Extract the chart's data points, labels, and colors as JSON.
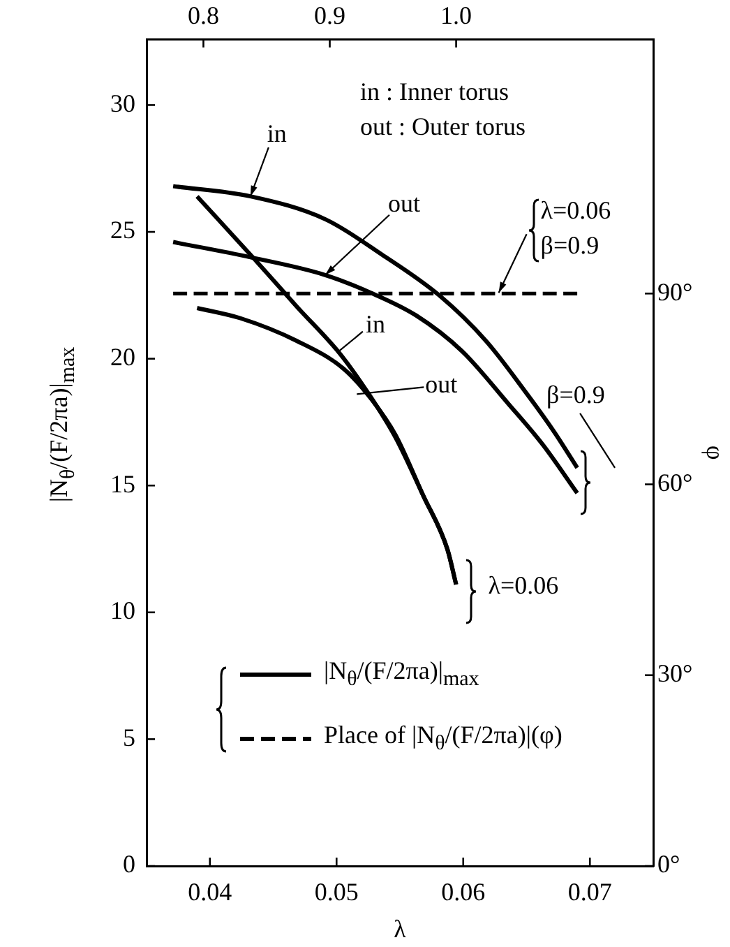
{
  "chart_data": {
    "type": "line",
    "xlabel": "λ",
    "ylabel": "|N$_{θ}$/(F/2πa)|$_{max}$",
    "y2label": "φ",
    "xlim": [
      0.035,
      0.075
    ],
    "xticks": [
      0.04,
      0.05,
      0.06,
      0.07
    ],
    "x2lim": [
      0.755,
      1.156
    ],
    "x2ticks": [
      0.8,
      0.9,
      {
        "value": 1,
        "label": "1.0"
      }
    ],
    "ylim": [
      0,
      32.6
    ],
    "yticks": [
      0,
      5,
      10,
      15,
      20,
      25,
      30
    ],
    "y2lim": [
      0,
      130
    ],
    "y2ticks": [
      {
        "value": 0,
        "label": "0°"
      },
      {
        "value": 30,
        "label": "30°"
      },
      {
        "value": 60,
        "label": "60°"
      },
      {
        "value": 90,
        "label": "90°"
      }
    ],
    "grid": false,
    "legend": "bottom left",
    "marker": "none",
    "line_style": "solid",
    "series": [
      {
        "name": "|N$_{θ}$/(F/2πa)|$_{max}$",
        "color": "#000000",
        "x": [
          0.0371,
          0.0432,
          0.0491,
          0.0536,
          0.0581,
          0.0618,
          0.0649,
          0.0672,
          0.069
        ],
        "values": [
          26.8,
          26.4,
          25.5,
          24.1,
          22.5,
          20.7,
          18.7,
          17.1,
          15.7
        ]
      },
      {
        "color": "#000000",
        "x": [
          0.0371,
          0.0432,
          0.0491,
          0.0527,
          0.0563,
          0.0599,
          0.0636,
          0.0663,
          0.069
        ],
        "values": [
          24.6,
          24.0,
          23.3,
          22.6,
          21.7,
          20.3,
          18.2,
          16.6,
          14.7
        ]
      },
      {
        "color": "#000000",
        "axis": "x2",
        "x": [
          0.795,
          0.84,
          0.874,
          0.908,
          0.931,
          0.952,
          0.974,
          0.993,
          1.0
        ],
        "values": [
          26.4,
          23.95,
          22.05,
          20.2,
          18.6,
          16.9,
          14.6,
          12.5,
          11.1
        ]
      },
      {
        "color": "#000000",
        "axis": "x2",
        "x": [
          0.795,
          0.829,
          0.874,
          0.911,
          0.933,
          0.952,
          0.974,
          0.993,
          1.0
        ],
        "values": [
          22.0,
          21.6,
          20.7,
          19.6,
          18.4,
          17.0,
          14.6,
          12.5,
          11.1
        ]
      },
      {
        "name": "Place of |N$_{θ}$/(F/2πa)|(φ)",
        "color": "#000000",
        "axis": "y2",
        "line_style": "dashed",
        "x": [
          0.0371,
          0.069
        ],
        "values": [
          90,
          90
        ]
      }
    ],
    "annotations": [
      "in : Inner torus",
      "out : Outer torus",
      {
        "text": "in",
        "x": 0.0432,
        "y": 26.4
      },
      {
        "text": "out",
        "x": 0.0491,
        "y": 23.3
      },
      {
        "text": "in",
        "x": 0.0502,
        "y": 20.3
      },
      {
        "text": "out",
        "x": 0.0516,
        "y": 18.6
      },
      {
        "text": "λ=0.06",
        "x": 0.0628,
        "y": 22.6
      },
      {
        "text": "β=0.9",
        "x": 0.0628,
        "y": 22.6
      },
      "β=0.9",
      "λ=0.06"
    ]
  }
}
